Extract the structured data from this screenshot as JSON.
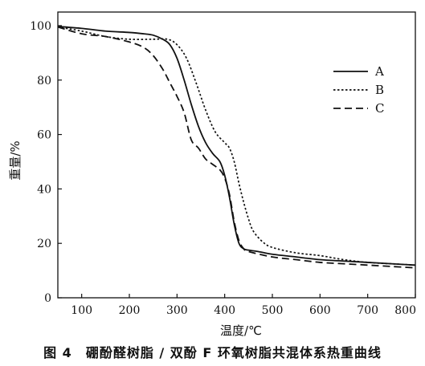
{
  "figure": {
    "caption": "图 4　硼酚醛树脂 / 双酚 F 环氧树脂共混体系热重曲线"
  },
  "chart_data": {
    "type": "line",
    "title": "",
    "xlabel": "温度/℃",
    "ylabel": "重量/%",
    "xlim": [
      50,
      800
    ],
    "ylim": [
      0,
      105
    ],
    "xticks": [
      100,
      200,
      300,
      400,
      500,
      600,
      700,
      800
    ],
    "yticks": [
      0,
      20,
      40,
      60,
      80,
      100
    ],
    "grid": false,
    "legend": "top-right",
    "series": [
      {
        "name": "A",
        "style": "solid",
        "color": "#111111",
        "x": [
          50,
          100,
          150,
          200,
          230,
          250,
          270,
          285,
          300,
          315,
          330,
          345,
          360,
          375,
          390,
          400,
          410,
          420,
          430,
          440,
          450,
          470,
          500,
          550,
          600,
          650,
          700,
          750,
          800
        ],
        "y": [
          99.7,
          99,
          98,
          97.5,
          97,
          96.5,
          95,
          93,
          88,
          80,
          71,
          63,
          57,
          53,
          50,
          45,
          37,
          27,
          20,
          18,
          17.5,
          17,
          16,
          15,
          14,
          13.5,
          13,
          12.5,
          12
        ]
      },
      {
        "name": "B",
        "style": "dotted",
        "color": "#111111",
        "x": [
          50,
          100,
          150,
          200,
          250,
          280,
          300,
          320,
          340,
          360,
          380,
          400,
          410,
          420,
          430,
          440,
          450,
          460,
          480,
          500,
          550,
          600,
          650,
          700,
          750,
          800
        ],
        "y": [
          99.5,
          98,
          96,
          95,
          95,
          95,
          93,
          88,
          79,
          69,
          61,
          57,
          55,
          50,
          42,
          35,
          29,
          24.5,
          20.5,
          18.5,
          16.5,
          15.5,
          14,
          13,
          12.5,
          12
        ]
      },
      {
        "name": "C",
        "style": "dashed",
        "color": "#111111",
        "x": [
          50,
          100,
          150,
          200,
          230,
          250,
          270,
          285,
          300,
          315,
          330,
          345,
          360,
          375,
          390,
          400,
          410,
          420,
          430,
          440,
          450,
          500,
          550,
          600,
          650,
          700,
          750,
          800
        ],
        "y": [
          99.5,
          97,
          96,
          94,
          92,
          89,
          84,
          79,
          74,
          68,
          58,
          55,
          51,
          49,
          47,
          44,
          38,
          28,
          21,
          18,
          17,
          15,
          14,
          13,
          12.5,
          12,
          11.5,
          11
        ]
      }
    ]
  }
}
